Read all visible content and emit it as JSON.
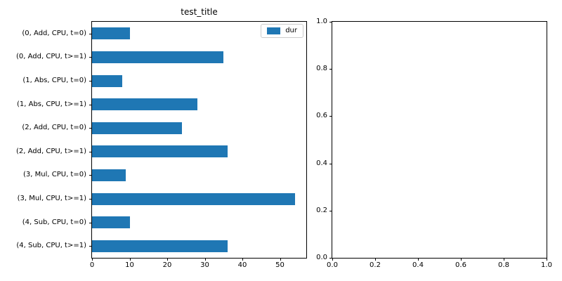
{
  "figure": {
    "background": "#ffffff"
  },
  "chart_data": [
    {
      "type": "bar",
      "orientation": "horizontal",
      "title": "test_title",
      "categories": [
        "(0, Add, CPU, t=0)",
        "(0, Add, CPU, t>=1)",
        "(1, Abs, CPU, t=0)",
        "(1, Abs, CPU, t>=1)",
        "(2, Add, CPU, t=0)",
        "(2, Add, CPU, t>=1)",
        "(3, Mul, CPU, t=0)",
        "(3, Mul, CPU, t>=1)",
        "(4, Sub, CPU, t=0)",
        "(4, Sub, CPU, t>=1)"
      ],
      "series": [
        {
          "name": "dur",
          "values": [
            10,
            35,
            8,
            28,
            24,
            36,
            9,
            54,
            10,
            36
          ]
        }
      ],
      "xlim": [
        0,
        57
      ],
      "xticks": [
        0,
        10,
        20,
        30,
        40,
        50
      ],
      "legend": {
        "label": "dur",
        "position": "upper right"
      },
      "bar_color": "#1f77b4",
      "grid": false
    },
    {
      "type": "empty-axes",
      "title": "",
      "xlim": [
        0,
        1
      ],
      "ylim": [
        0,
        1
      ],
      "xticks": [
        "0.0",
        "0.2",
        "0.4",
        "0.6",
        "0.8",
        "1.0"
      ],
      "yticks": [
        "0.0",
        "0.2",
        "0.4",
        "0.6",
        "0.8",
        "1.0"
      ]
    }
  ]
}
